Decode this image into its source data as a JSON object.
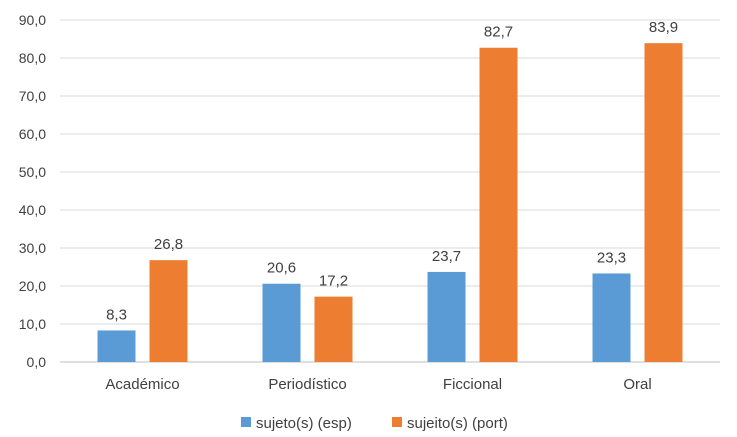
{
  "chart_data": {
    "type": "bar",
    "categories": [
      "Académico",
      "Periodístico",
      "Ficcional",
      "Oral"
    ],
    "series": [
      {
        "name": "sujeto(s) (esp)",
        "color": "#5b9bd5",
        "values": [
          8.3,
          20.6,
          23.7,
          23.3
        ],
        "labels": [
          "8,3",
          "20,6",
          "23,7",
          "23,3"
        ]
      },
      {
        "name": "sujeito(s) (port)",
        "color": "#ed7d31",
        "values": [
          26.8,
          17.2,
          82.7,
          83.9
        ],
        "labels": [
          "26,8",
          "17,2",
          "82,7",
          "83,9"
        ]
      }
    ],
    "ylim": [
      0,
      90
    ],
    "yticks": [
      0,
      10,
      20,
      30,
      40,
      50,
      60,
      70,
      80,
      90
    ],
    "ytick_labels": [
      "0,0",
      "10,0",
      "20,0",
      "30,0",
      "40,0",
      "50,0",
      "60,0",
      "70,0",
      "80,0",
      "90,0"
    ],
    "grid": true,
    "legend_position": "bottom-center"
  }
}
